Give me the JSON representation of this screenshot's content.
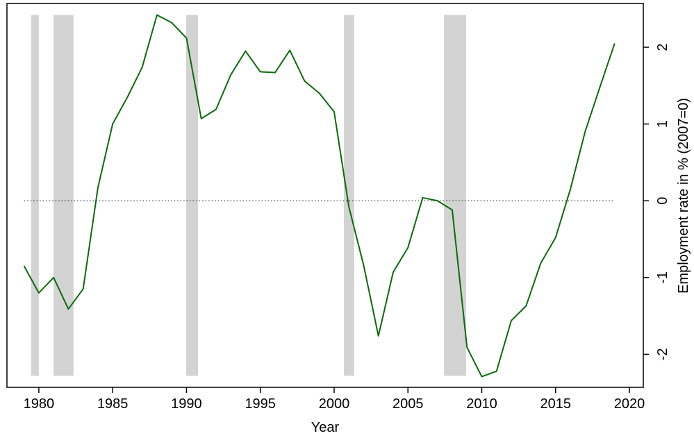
{
  "chart_data": {
    "type": "line",
    "x_label": "Year",
    "y_label": "Employment rate in % (2007=0)",
    "x": [
      1979,
      1980,
      1981,
      1982,
      1983,
      1984,
      1985,
      1986,
      1987,
      1988,
      1989,
      1990,
      1991,
      1992,
      1993,
      1994,
      1995,
      1996,
      1997,
      1998,
      1999,
      2000,
      2001,
      2002,
      2003,
      2004,
      2005,
      2006,
      2007,
      2008,
      2009,
      2010,
      2011,
      2012,
      2013,
      2014,
      2015,
      2016,
      2017,
      2018,
      2019
    ],
    "series": [
      {
        "color": "#0a6b0a",
        "values": [
          -0.85,
          -1.2,
          -1.0,
          -1.41,
          -1.15,
          0.17,
          1.0,
          1.35,
          1.74,
          2.42,
          2.32,
          2.12,
          1.07,
          1.19,
          1.64,
          1.95,
          1.68,
          1.67,
          1.96,
          1.56,
          1.4,
          1.16,
          -0.08,
          -0.84,
          -1.76,
          -0.93,
          -0.61,
          0.04,
          0.0,
          -0.12,
          -1.91,
          -2.29,
          -2.22,
          -1.56,
          -1.37,
          -0.81,
          -0.48,
          0.15,
          0.9,
          1.48,
          2.05
        ]
      }
    ],
    "shaded_periods": [
      [
        1979.48,
        1980.0
      ],
      [
        1980.99,
        1982.35
      ],
      [
        1989.98,
        1990.78
      ],
      [
        2000.66,
        2001.36
      ],
      [
        2007.44,
        2008.94
      ]
    ],
    "shade_color": "#d3d3d3",
    "shade_ylim": [
      -2.28,
      2.42
    ],
    "hline": 0,
    "xlim": [
      1977.84,
      2020.94
    ],
    "xticks": [
      1980,
      1985,
      1990,
      1995,
      2000,
      2005,
      2010,
      2015,
      2020
    ],
    "ylim": [
      -2.43,
      2.57
    ],
    "yticks": [
      -2,
      -1,
      0,
      1,
      2
    ],
    "y_axis_side": "right"
  }
}
